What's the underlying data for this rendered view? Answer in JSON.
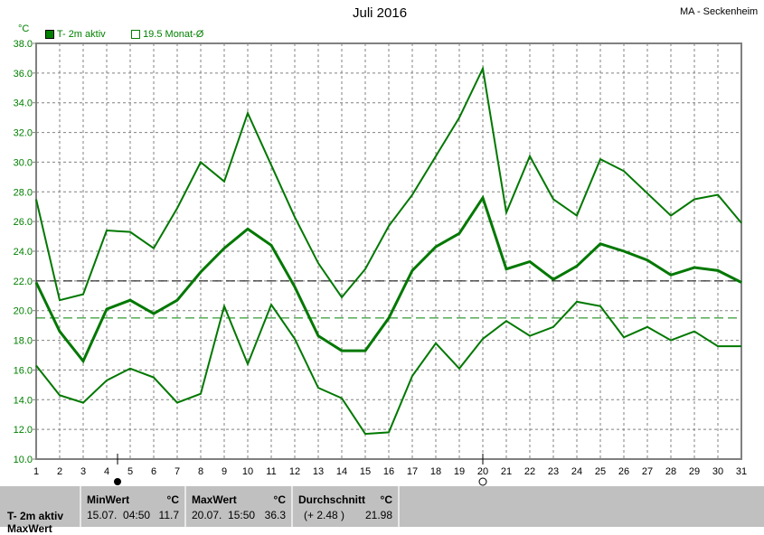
{
  "title": "Juli 2016",
  "station": "MA - Seckenheim",
  "unit": "°C",
  "legend": [
    {
      "label": "T- 2m aktiv",
      "filled": true
    },
    {
      "label": "19.5 Monat-Ø",
      "filled": false
    }
  ],
  "colors": {
    "series": "#007800",
    "axis": "#808080",
    "ref": "#000000",
    "avg": "#008000"
  },
  "chart_data": {
    "type": "line",
    "title": "Juli 2016",
    "ylabel": "°C",
    "ylim": [
      10,
      38
    ],
    "yticks": [
      10,
      12,
      14,
      16,
      18,
      20,
      22,
      24,
      26,
      28,
      30,
      32,
      34,
      36,
      38
    ],
    "x": [
      1,
      2,
      3,
      4,
      5,
      6,
      7,
      8,
      9,
      10,
      11,
      12,
      13,
      14,
      15,
      16,
      17,
      18,
      19,
      20,
      21,
      22,
      23,
      24,
      25,
      26,
      27,
      28,
      29,
      30,
      31
    ],
    "grid": true,
    "series": [
      {
        "name": "T- 2m aktiv",
        "role": "max",
        "values": [
          27.5,
          20.7,
          21.1,
          25.4,
          25.3,
          24.2,
          26.9,
          30.0,
          28.7,
          33.3,
          29.8,
          26.3,
          23.2,
          20.9,
          22.8,
          25.7,
          27.8,
          30.4,
          33.0,
          36.3,
          26.6,
          30.4,
          27.5,
          26.4,
          30.2,
          29.4,
          27.9,
          26.4,
          27.5,
          27.8,
          25.9
        ]
      },
      {
        "role": "mean",
        "values": [
          21.9,
          18.6,
          16.6,
          20.1,
          20.7,
          19.8,
          20.7,
          22.6,
          24.2,
          25.5,
          24.4,
          21.6,
          18.3,
          17.3,
          17.3,
          19.5,
          22.7,
          24.3,
          25.2,
          27.6,
          22.8,
          23.3,
          22.1,
          23.0,
          24.5,
          24.0,
          23.4,
          22.4,
          22.9,
          22.7,
          21.9
        ]
      },
      {
        "role": "min",
        "values": [
          16.3,
          14.3,
          13.8,
          15.3,
          16.1,
          15.5,
          13.8,
          14.4,
          20.3,
          16.4,
          20.4,
          18.1,
          14.8,
          14.1,
          11.7,
          11.8,
          15.6,
          17.8,
          16.1,
          18.1,
          19.3,
          18.3,
          18.9,
          20.6,
          20.3,
          18.2,
          18.9,
          18.0,
          18.6,
          17.6,
          17.6
        ]
      }
    ],
    "reference_lines": [
      {
        "value": 22.0,
        "style": "dashed",
        "color": "black"
      },
      {
        "label": "19.5 Monat-Ø",
        "value": 19.5,
        "style": "dashed",
        "color": "green"
      }
    ],
    "markers": [
      {
        "x": 4.5,
        "symbol": "new-moon"
      },
      {
        "x": 20,
        "symbol": "full-moon"
      }
    ]
  },
  "stats": {
    "row_label": "T- 2m aktiv",
    "row2_label": "MaxWert",
    "min_header": "MinWert",
    "max_header": "MaxWert",
    "avg_header": "Durchschnitt",
    "unit": "°C",
    "min_time": "15.07.  04:50",
    "min_value": "11.7",
    "max_time": "20.07.  15:50",
    "max_value": "36.3",
    "avg_dev": "(+ 2.48 )",
    "avg_value": "21.98"
  }
}
